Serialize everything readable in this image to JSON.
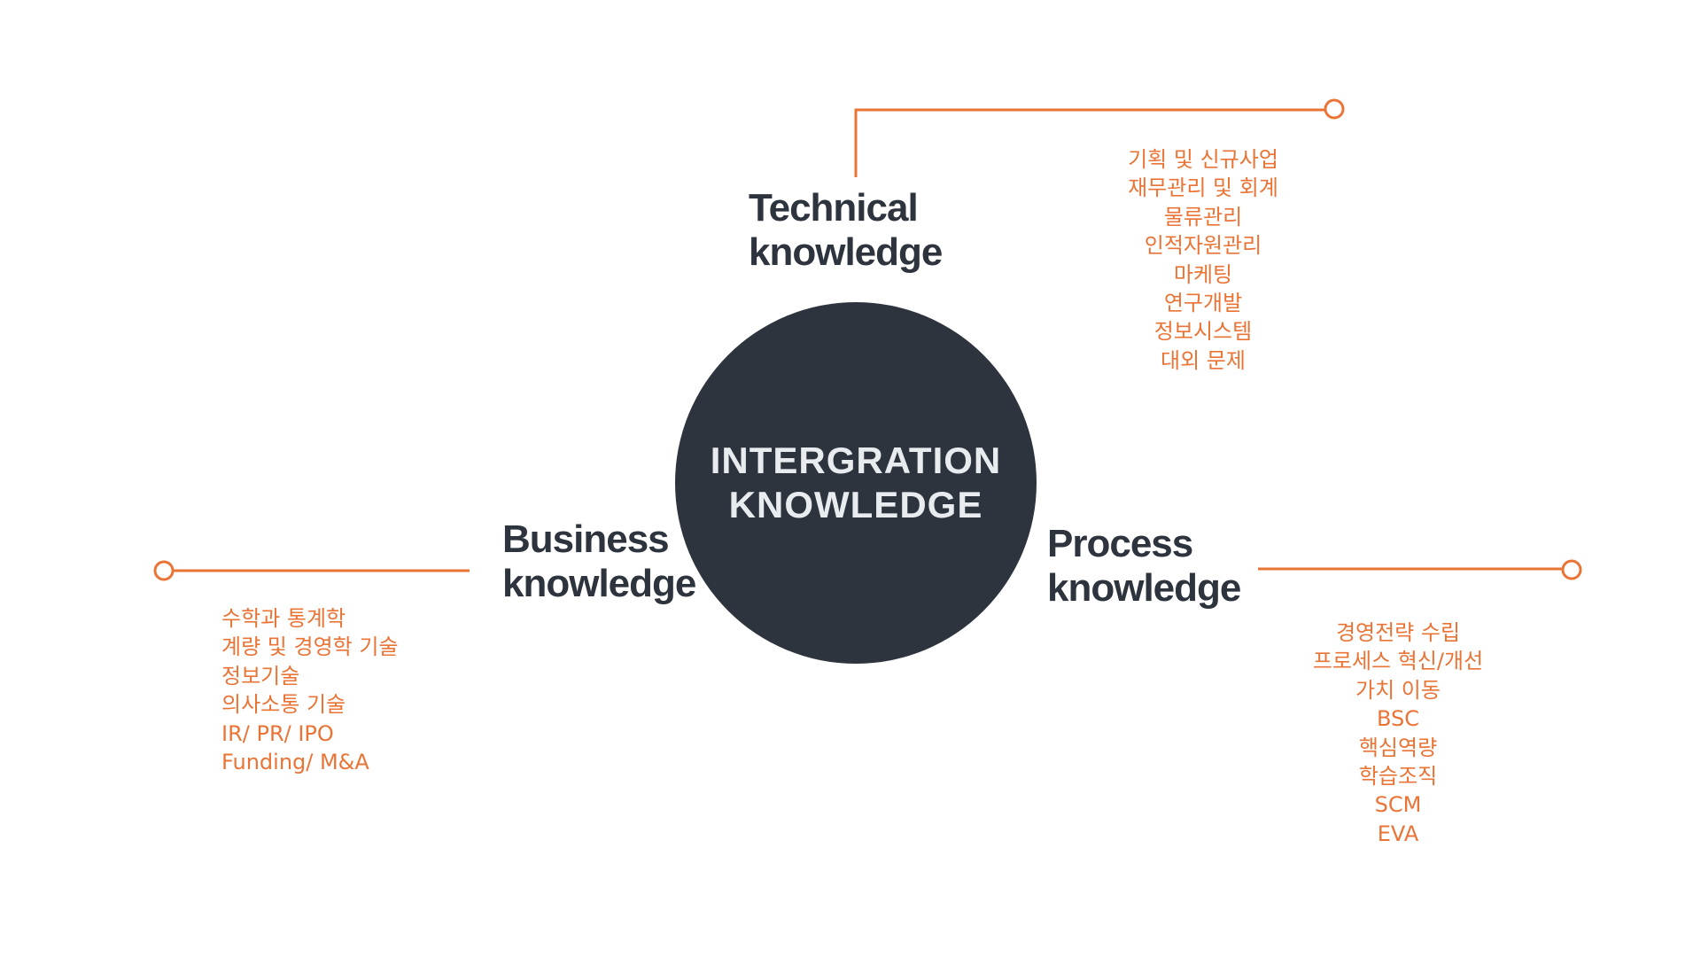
{
  "colors": {
    "accent": "#ea7436",
    "dark": "#2e343e",
    "hub_text": "#e9ecef",
    "background": "#ffffff"
  },
  "center": {
    "line1": "INTERGRATION",
    "line2": "KNOWLEDGE"
  },
  "branches": [
    {
      "id": "technical",
      "title_line1": "Technical",
      "title_line2": "knowledge",
      "items": [
        "기획 및 신규사업",
        "재무관리 및 회계",
        "물류관리",
        "인적자원관리",
        "마케팅",
        "연구개발",
        "정보시스템",
        "대외 문제"
      ]
    },
    {
      "id": "business",
      "title_line1": "Business",
      "title_line2": "knowledge",
      "items": [
        "수학과 통계학",
        "계량 및 경영학 기술",
        "정보기술",
        "의사소통 기술",
        "IR/ PR/ IPO",
        "Funding/ M&A"
      ]
    },
    {
      "id": "process",
      "title_line1": "Process",
      "title_line2": "knowledge",
      "items": [
        "경영전략 수립",
        "프로세스 혁신/개선",
        "가치 이동",
        "BSC",
        "핵심역량",
        "학습조직",
        "SCM",
        "EVA"
      ]
    }
  ]
}
